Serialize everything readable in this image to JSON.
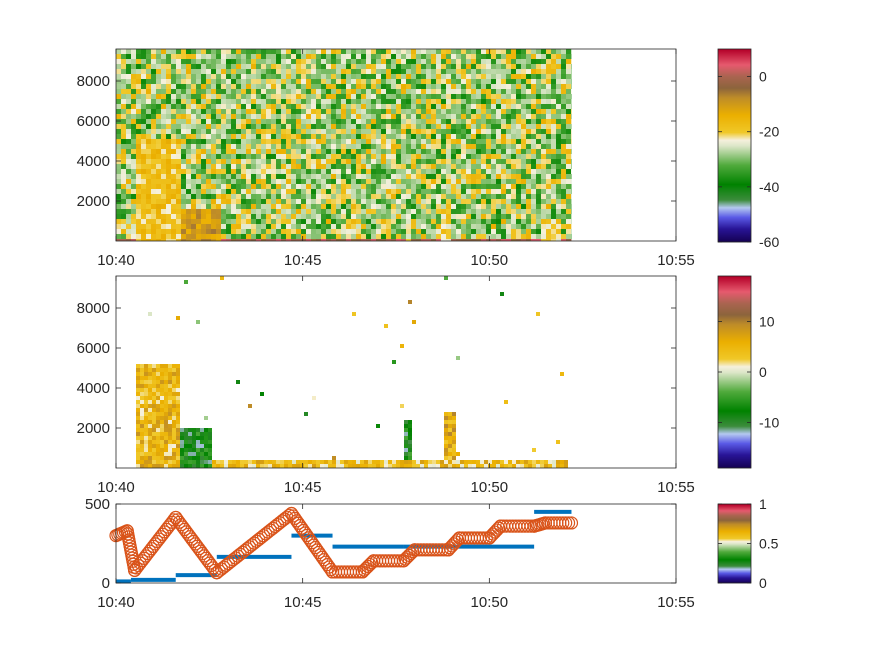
{
  "chart_data": [
    {
      "type": "heatmap",
      "title": "",
      "xlabel": "",
      "ylabel": "",
      "x_ticks": [
        "10:40",
        "10:45",
        "10:50",
        "10:55"
      ],
      "x_range_minutes": [
        0,
        15
      ],
      "data_extent_minutes": [
        0,
        12.2
      ],
      "y_ticks": [
        2000,
        4000,
        6000,
        8000
      ],
      "ylim": [
        0,
        9600
      ],
      "colorbar": {
        "ticks": [
          0,
          -20,
          -40,
          -60
        ],
        "range": [
          -60,
          10
        ]
      },
      "features": [
        {
          "label": "plume",
          "x_range_minutes": [
            0.5,
            1.7
          ],
          "top": 5100,
          "approx_value": -18
        },
        {
          "label": "plume",
          "x_range_minutes": [
            1.7,
            2.7
          ],
          "top": 1800,
          "approx_value": -10
        },
        {
          "label": "plume",
          "x_range_minutes": [
            7.7,
            7.9
          ],
          "top": 1500,
          "approx_value": -20
        },
        {
          "label": "plume",
          "x_range_minutes": [
            8.7,
            8.95
          ],
          "top": 1600,
          "approx_value": -20
        },
        {
          "label": "plume",
          "x_range_minutes": [
            11.3,
            11.8
          ],
          "top": 1100,
          "approx_value": -20
        },
        {
          "label": "surface layer",
          "x_range_minutes": [
            0,
            12.2
          ],
          "top": 300,
          "approx_value": 0
        }
      ]
    },
    {
      "type": "heatmap",
      "title": "",
      "xlabel": "",
      "ylabel": "",
      "x_ticks": [
        "10:40",
        "10:45",
        "10:50",
        "10:55"
      ],
      "x_range_minutes": [
        0,
        15
      ],
      "y_ticks": [
        2000,
        4000,
        6000,
        8000
      ],
      "ylim": [
        0,
        9600
      ],
      "colorbar": {
        "ticks": [
          10,
          0,
          -10
        ],
        "range": [
          -19,
          19
        ]
      },
      "features": [
        {
          "label": "plume",
          "x_range_minutes": [
            0.45,
            1.7
          ],
          "top": 5200,
          "approx_value": 5
        },
        {
          "label": "plume",
          "x_range_minutes": [
            1.7,
            2.5
          ],
          "top": 2000,
          "approx_value": -8
        },
        {
          "label": "band",
          "x_range_minutes": [
            2.5,
            12.0
          ],
          "top": 500,
          "approx_value": 4
        },
        {
          "label": "plume",
          "x_range_minutes": [
            7.7,
            7.9
          ],
          "top": 2500,
          "approx_value": -8
        },
        {
          "label": "plume",
          "x_range_minutes": [
            8.7,
            9.0
          ],
          "top": 2900,
          "approx_value": 6
        }
      ]
    },
    {
      "type": "scatter",
      "title": "",
      "xlabel": "",
      "ylabel": "",
      "x_ticks": [
        "10:40",
        "10:45",
        "10:50",
        "10:55"
      ],
      "x_range_minutes": [
        0,
        15
      ],
      "y_ticks": [
        0,
        500
      ],
      "ylim": [
        0,
        500
      ],
      "colorbar": {
        "ticks": [
          1,
          0.5,
          0
        ],
        "range": [
          0,
          1
        ]
      },
      "series": [
        {
          "color": "#0072BD",
          "segments": [
            {
              "x": [
                0.0,
                0.4
              ],
              "y": 10
            },
            {
              "x": [
                0.4,
                1.6
              ],
              "y": 20
            },
            {
              "x": [
                1.6,
                2.7
              ],
              "y": 50
            },
            {
              "x": [
                2.7,
                4.7
              ],
              "y": 165
            },
            {
              "x": [
                4.7,
                5.8
              ],
              "y": 300
            },
            {
              "x": [
                5.8,
                7.7
              ],
              "y": 230
            },
            {
              "x": [
                7.7,
                9.0
              ],
              "y": 230
            },
            {
              "x": [
                9.0,
                11.2
              ],
              "y": 230
            },
            {
              "x": [
                11.2,
                12.2
              ],
              "y": 450
            }
          ]
        },
        {
          "color": "#D95319",
          "points": [
            [
              0.0,
              300
            ],
            [
              0.3,
              330
            ],
            [
              0.5,
              80
            ],
            [
              1.6,
              415
            ],
            [
              2.7,
              65
            ],
            [
              4.7,
              440
            ],
            [
              5.8,
              70
            ],
            [
              6.6,
              70
            ],
            [
              6.9,
              140
            ],
            [
              7.7,
              140
            ],
            [
              8.0,
              210
            ],
            [
              8.9,
              210
            ],
            [
              9.2,
              285
            ],
            [
              10.0,
              285
            ],
            [
              10.3,
              360
            ],
            [
              11.2,
              360
            ],
            [
              11.5,
              380
            ],
            [
              12.2,
              380
            ]
          ]
        }
      ]
    }
  ]
}
